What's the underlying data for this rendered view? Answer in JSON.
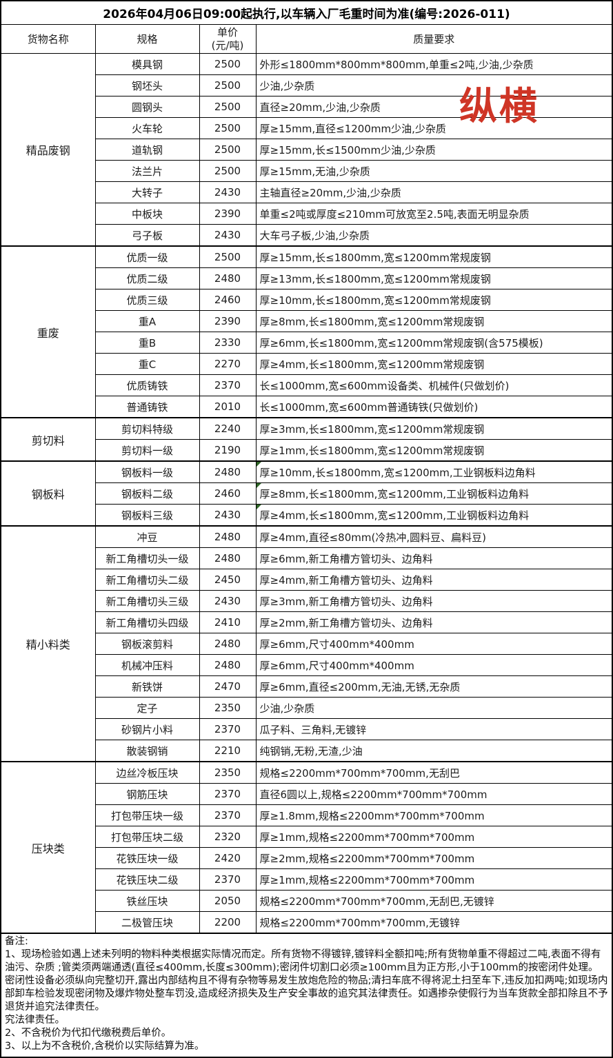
{
  "title": "2026年04月06日09:00起执行,以车辆入厂毛重时间为准(编号:2026-011)",
  "headers": {
    "goods": "货物名称",
    "spec": "规格",
    "price": "单价\n(元/吨)",
    "quality": "质量要求"
  },
  "watermark": {
    "text": "纵横",
    "color": "#cf3526"
  },
  "groups": [
    {
      "name": "精品废钢",
      "rows": [
        {
          "spec": "模具钢",
          "price": "2500",
          "quality": "外形≤1800mm*800mm*800mm,单重≤2吨,少油,少杂质"
        },
        {
          "spec": "钢坯头",
          "price": "2500",
          "quality": "少油,少杂质"
        },
        {
          "spec": "圆钢头",
          "price": "2500",
          "quality": "直径≥20mm,少油,少杂质"
        },
        {
          "spec": "火车轮",
          "price": "2500",
          "quality": "厚≥15mm,直径≤1200mm少油,少杂质"
        },
        {
          "spec": "道轨钢",
          "price": "2500",
          "quality": "厚≥15mm,长≤1500mm少油,少杂质"
        },
        {
          "spec": "法兰片",
          "price": "2500",
          "quality": "厚≥15mm,无油,少杂质"
        },
        {
          "spec": "大转子",
          "price": "2430",
          "quality": "主轴直径≥20mm,少油,少杂质"
        },
        {
          "spec": "中板块",
          "price": "2390",
          "quality": "单重≤2吨或厚度≤210mm可放宽至2.5吨,表面无明显杂质"
        },
        {
          "spec": "弓子板",
          "price": "2430",
          "quality": "大车弓子板,少油,少杂质"
        }
      ]
    },
    {
      "name": "重废",
      "rows": [
        {
          "spec": "优质一级",
          "price": "2500",
          "quality": "厚≥15mm,长≤1800mm,宽≤1200mm常规废钢"
        },
        {
          "spec": "优质二级",
          "price": "2480",
          "quality": "厚≥13mm,长≤1800mm,宽≤1200mm常规废钢"
        },
        {
          "spec": "优质三级",
          "price": "2460",
          "quality": "厚≥10mm,长≤1800mm,宽≤1200mm常规废钢"
        },
        {
          "spec": "重A",
          "price": "2390",
          "quality": "厚≥8mm,长≤1800mm,宽≤1200mm常规废钢"
        },
        {
          "spec": "重B",
          "price": "2330",
          "quality": "厚≥6mm,长≤1800mm,宽≤1200mm常规废钢(含575模板)"
        },
        {
          "spec": "重C",
          "price": "2270",
          "quality": "厚≥4mm,长≤1800mm,宽≤1200mm常规废钢"
        },
        {
          "spec": "优质铸铁",
          "price": "2370",
          "quality": "长≤1000mm,宽≤600mm设备类、机械件(只做划价)"
        },
        {
          "spec": "普通铸铁",
          "price": "2010",
          "quality": "长≤1000mm,宽≤600mm普通铸铁(只做划价)"
        }
      ]
    },
    {
      "name": "剪切料",
      "rows": [
        {
          "spec": "剪切料特级",
          "price": "2240",
          "quality": "厚≥3mm,长≤1800mm,宽≤1200mm常规废钢"
        },
        {
          "spec": "剪切料一级",
          "price": "2190",
          "quality": "厚≥1mm,长≤1800mm,宽≤1200mm常规废钢"
        }
      ]
    },
    {
      "name": "钢板料",
      "rows": [
        {
          "spec": "钢板料一级",
          "price": "2480",
          "quality": "厚≥10mm,长≤1800mm,宽≤1200mm,工业钢板料边角料",
          "marker": true
        },
        {
          "spec": "钢板料二级",
          "price": "2460",
          "quality": "厚≥8mm,长≤1800mm,宽≤1200mm,工业钢板料边角料",
          "marker": true
        },
        {
          "spec": "钢板料三级",
          "price": "2430",
          "quality": "厚≥4mm,长≤1800mm,宽≤1200mm,工业钢板料边角料",
          "marker": true
        }
      ]
    },
    {
      "name": "精小料类",
      "rows": [
        {
          "spec": "冲豆",
          "price": "2480",
          "quality": "厚≥4mm,直径≤80mm(冷热冲,圆料豆、扁料豆)"
        },
        {
          "spec": "新工角槽切头一级",
          "price": "2480",
          "quality": "厚≥6mm,新工角槽方管切头、边角料"
        },
        {
          "spec": "新工角槽切头二级",
          "price": "2450",
          "quality": "厚≥4mm,新工角槽方管切头、边角料"
        },
        {
          "spec": "新工角槽切头三级",
          "price": "2430",
          "quality": "厚≥3mm,新工角槽方管切头、边角料"
        },
        {
          "spec": "新工角槽切头四级",
          "price": "2410",
          "quality": "厚≥2mm,新工角槽方管切头、边角料"
        },
        {
          "spec": "钢板滚剪料",
          "price": "2480",
          "quality": "厚≥6mm,尺寸400mm*400mm"
        },
        {
          "spec": "机械冲压料",
          "price": "2480",
          "quality": "厚≥6mm,尺寸400mm*400mm"
        },
        {
          "spec": "新铁饼",
          "price": "2470",
          "quality": "厚≥6mm,直径≤200mm,无油,无锈,无杂质"
        },
        {
          "spec": "定子",
          "price": "2350",
          "quality": "少油,少杂质"
        },
        {
          "spec": "砂钢片小料",
          "price": "2370",
          "quality": "瓜子料、三角料,无镀锌"
        },
        {
          "spec": "散装钢销",
          "price": "2210",
          "quality": "纯钢销,无粉,无渣,少油"
        }
      ]
    },
    {
      "name": "压块类",
      "rows": [
        {
          "spec": "边丝冷板压块",
          "price": "2350",
          "quality": "规格≤2200mm*700mm*700mm,无刮巴"
        },
        {
          "spec": "钢筋压块",
          "price": "2370",
          "quality": "直径6圆以上,规格≤2200mm*700mm*700mm"
        },
        {
          "spec": "打包带压块一级",
          "price": "2370",
          "quality": "厚≥1.8mm,规格≤2200mm*700mm*700mm"
        },
        {
          "spec": "打包带压块二级",
          "price": "2320",
          "quality": "厚≥1mm,规格≤2200mm*700mm*700mm"
        },
        {
          "spec": "花铁压块一级",
          "price": "2420",
          "quality": "厚≥2mm,规格≤2200mm*700mm*700mm"
        },
        {
          "spec": "花铁压块二级",
          "price": "2370",
          "quality": "厚≥1mm,规格≤2200mm*700mm*700mm"
        },
        {
          "spec": "铁丝压块",
          "price": "2050",
          "quality": "规格≤2200mm*700mm*700mm,无刮巴,无镀锌"
        },
        {
          "spec": "二极管压块",
          "price": "2200",
          "quality": "规格≤2200mm*700mm*700mm,无镀锌"
        }
      ]
    }
  ],
  "notes": {
    "lines": [
      "备注:",
      "1、现场检验如遇上述未列明的物料种类根据实际情况而定。所有货物不得镀锌,镀锌料全额扣吨;所有货物单重不得超过二吨,表面不得有油污、杂质 ;管类须两端通透(直径≤400mm,长度≤300mm);密闭件切割口必须≥100mm且为正方形,小于100mm的按密闭件处理。密闭性设备必须纵向完整切开,露出内部结构且不得有杂物等易发生放炮危险的物品;清扫车底不得将泥土扫至车下,违反加扣两吨;如现场内部卸车检验发现密闭物及爆炸物处整车罚没,造成经济损失及生产安全事故的追究其法律责任。如遇掺杂使假行为当车货款全部扣除且不予退货并追究法律责任。",
      "究法律责任。",
      "2、不含税价为代扣代缴税费后单价。",
      "3、以上为不含税价,含税价以实际结算为准。"
    ]
  }
}
